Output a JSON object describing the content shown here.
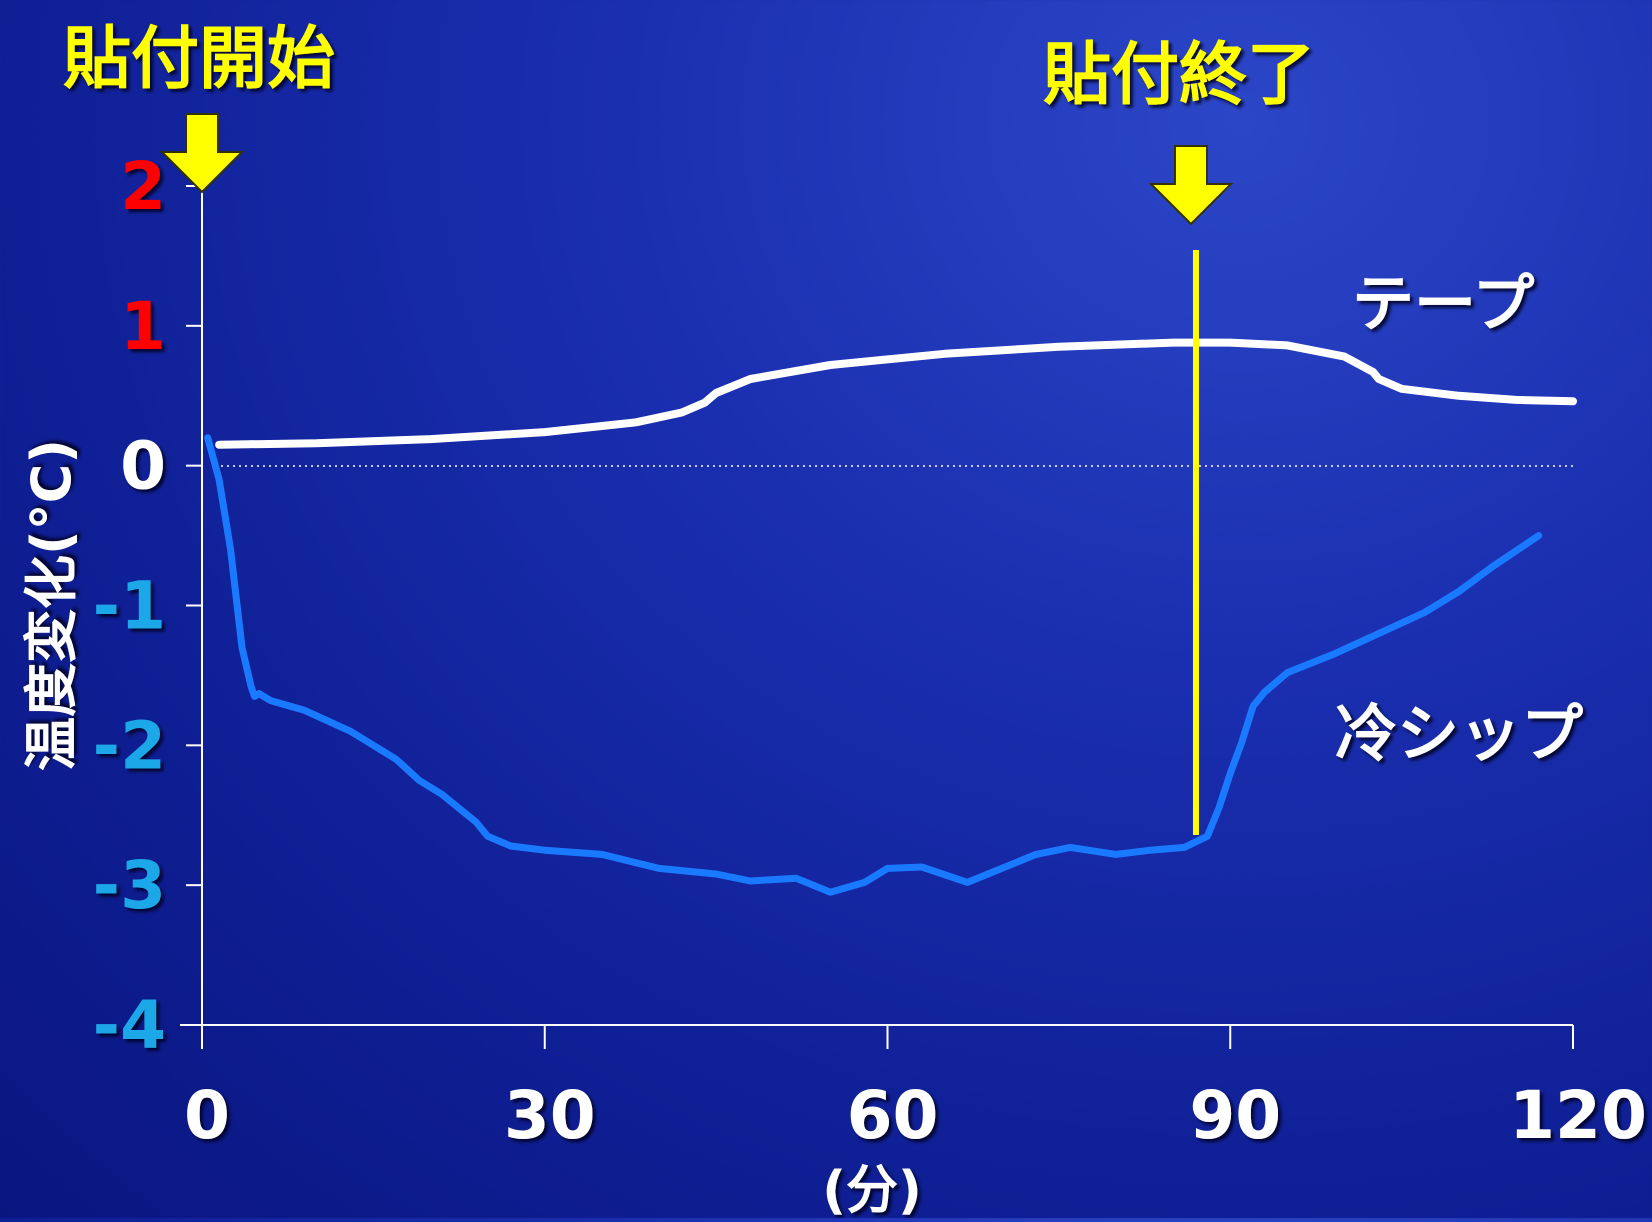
{
  "colors": {
    "background": "#1a2fb0",
    "axis": "#ffffff",
    "marker": "#ffff00",
    "tape_line": "#ffffff",
    "cold_line": "#1a7aff",
    "tick_positive": "#ff0000",
    "tick_zero": "#ffffff",
    "tick_negative": "#1fa8e8"
  },
  "icons": {
    "start_arrow": "arrow-down-icon",
    "end_arrow": "arrow-down-icon"
  },
  "chart_data": {
    "type": "line",
    "title": "",
    "xlabel": "(分)",
    "ylabel": "温度変化(°C)",
    "xlim": [
      0,
      120
    ],
    "ylim": [
      -4,
      2
    ],
    "x_ticks": [
      0,
      30,
      60,
      90,
      120
    ],
    "x_tick_labels": [
      "0",
      "30",
      "60",
      "90",
      "120"
    ],
    "y_ticks": [
      2,
      1,
      0,
      -1,
      -2,
      -3,
      -4
    ],
    "y_tick_labels": [
      "2",
      "1",
      "0",
      "-1",
      "-2",
      "-3",
      "-4"
    ],
    "zero_line": "dotted",
    "annotations": {
      "start": {
        "text": "貼付開始",
        "x": 0
      },
      "end": {
        "text": "貼付終了",
        "x": 87
      }
    },
    "series": [
      {
        "name": "テープ",
        "x": [
          1.5,
          10,
          20,
          30,
          38,
          42,
          44,
          45,
          48,
          55,
          65,
          75,
          85,
          90,
          95,
          100,
          102.5,
          103,
          105,
          110,
          115,
          120
        ],
        "y": [
          0.15,
          0.16,
          0.19,
          0.24,
          0.31,
          0.38,
          0.45,
          0.52,
          0.62,
          0.72,
          0.8,
          0.85,
          0.88,
          0.88,
          0.86,
          0.78,
          0.67,
          0.62,
          0.55,
          0.5,
          0.47,
          0.46
        ]
      },
      {
        "name": "冷シップ",
        "x": [
          0.5,
          1.5,
          2.5,
          3.5,
          4.3,
          4.6,
          5,
          6,
          9,
          13,
          15,
          17,
          19,
          21,
          24,
          25,
          27,
          30,
          35,
          40,
          45,
          48,
          52,
          55,
          58,
          60,
          63,
          67,
          70,
          73,
          76,
          80,
          83,
          86,
          88,
          89,
          90,
          91,
          92,
          93,
          95,
          99,
          103,
          107,
          110,
          113,
          117
        ],
        "y": [
          0.2,
          -0.1,
          -0.6,
          -1.3,
          -1.58,
          -1.65,
          -1.63,
          -1.68,
          -1.75,
          -1.9,
          -2.0,
          -2.1,
          -2.25,
          -2.35,
          -2.55,
          -2.65,
          -2.72,
          -2.75,
          -2.78,
          -2.88,
          -2.92,
          -2.97,
          -2.95,
          -3.05,
          -2.98,
          -2.88,
          -2.87,
          -2.98,
          -2.88,
          -2.78,
          -2.73,
          -2.78,
          -2.75,
          -2.73,
          -2.65,
          -2.45,
          -2.2,
          -1.98,
          -1.72,
          -1.62,
          -1.48,
          -1.35,
          -1.2,
          -1.05,
          -0.9,
          -0.72,
          -0.5
        ]
      }
    ]
  }
}
